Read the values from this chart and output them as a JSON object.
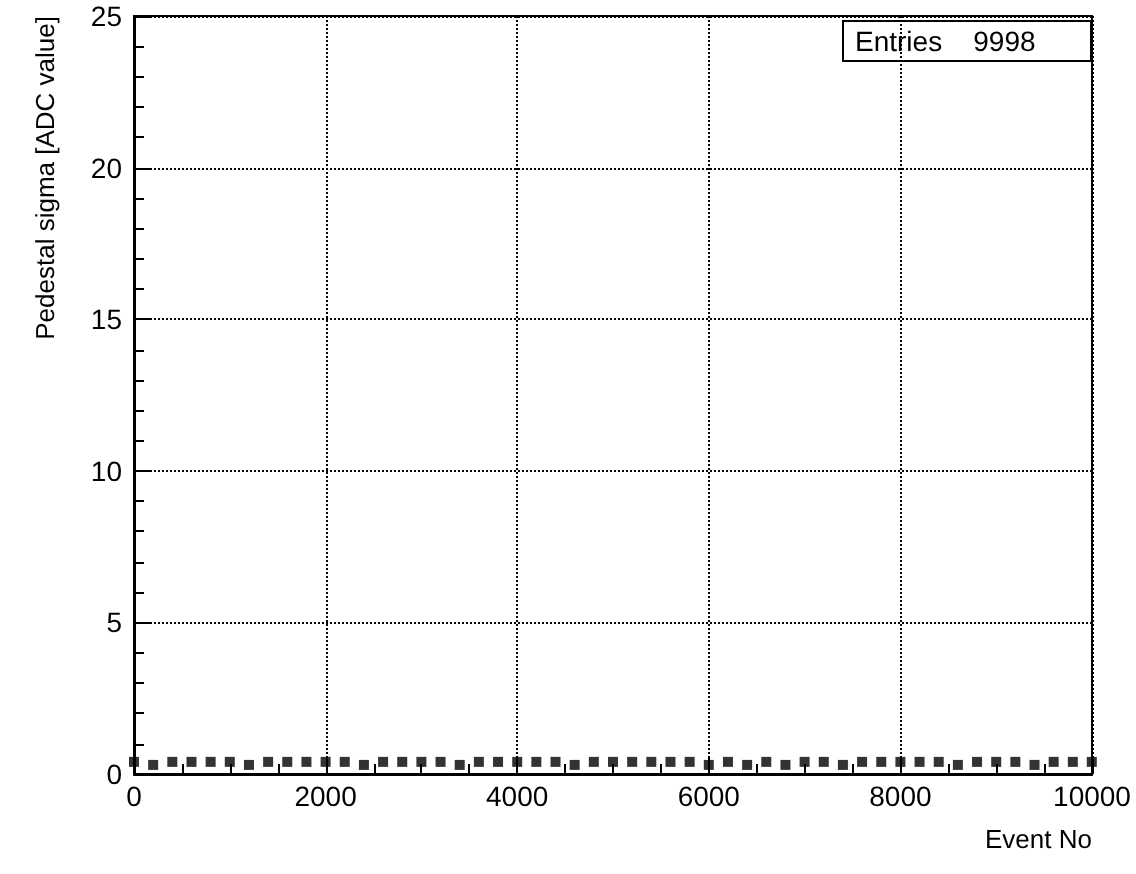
{
  "chart_data": {
    "type": "scatter",
    "xlabel": "Event No",
    "ylabel": "Pedestal sigma [ADC value]",
    "annotations": [
      "Entries    9998"
    ],
    "x": [
      0,
      200,
      400,
      600,
      800,
      1000,
      1200,
      1400,
      1600,
      1800,
      2000,
      2200,
      2400,
      2600,
      2800,
      3000,
      3200,
      3400,
      3600,
      3800,
      4000,
      4200,
      4400,
      4600,
      4800,
      5000,
      5200,
      5400,
      5600,
      5800,
      6000,
      6200,
      6400,
      6600,
      6800,
      7000,
      7200,
      7400,
      7600,
      7800,
      8000,
      8200,
      8400,
      8600,
      8800,
      9000,
      9200,
      9400,
      9600,
      9800,
      9998
    ],
    "series": [
      {
        "color": "#000000",
        "values": [
          0.4,
          0.3,
          0.4,
          0.4,
          0.4,
          0.4,
          0.3,
          0.4,
          0.4,
          0.4,
          0.4,
          0.4,
          0.3,
          0.4,
          0.4,
          0.4,
          0.4,
          0.3,
          0.4,
          0.4,
          0.4,
          0.4,
          0.4,
          0.3,
          0.4,
          0.4,
          0.4,
          0.4,
          0.4,
          0.4,
          0.3,
          0.4,
          0.3,
          0.4,
          0.3,
          0.4,
          0.4,
          0.3,
          0.4,
          0.4,
          0.4,
          0.4,
          0.4,
          0.3,
          0.4,
          0.4,
          0.4,
          0.3,
          0.4,
          0.4,
          0.4
        ]
      }
    ],
    "xlim": [
      0,
      10000
    ],
    "xticks": [
      0,
      2000,
      4000,
      6000,
      8000,
      10000
    ],
    "ylim": [
      0,
      25
    ],
    "yticks": [
      0,
      5,
      10,
      15,
      20,
      25
    ],
    "grid": true,
    "marker": "square"
  }
}
